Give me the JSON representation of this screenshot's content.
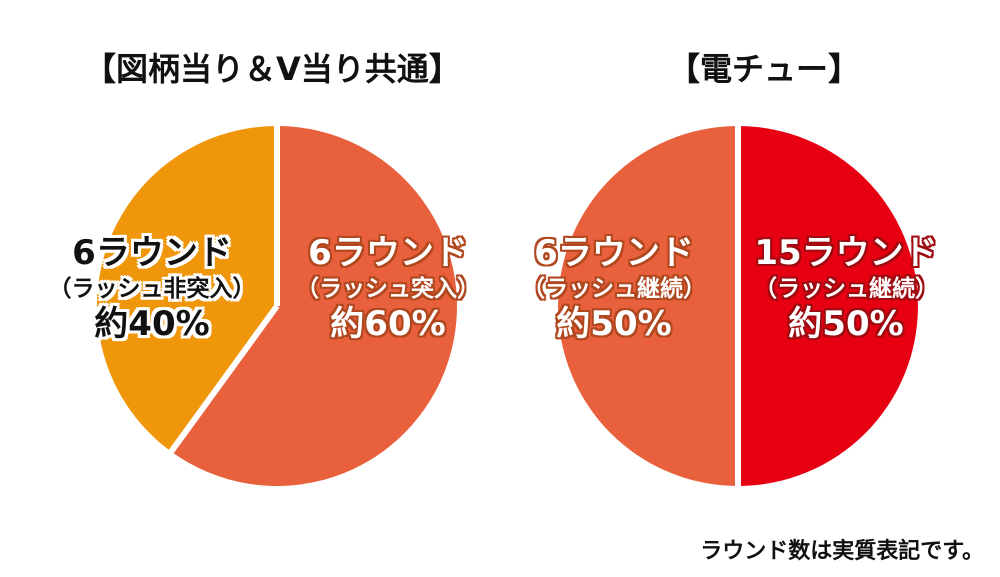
{
  "colors": {
    "orange": "#F0960A",
    "coral": "#E8613C",
    "red": "#E60012",
    "separator": "#ffffff"
  },
  "footnote": "ラウンド数は実質表記です。",
  "chart_data": [
    {
      "type": "pie",
      "title": "【図柄当り＆V当り共通】",
      "slices": [
        {
          "round": "6ラウンド",
          "sub": "（ラッシュ非突入）",
          "pct_label": "約40%",
          "value": 40,
          "color": "#F0960A",
          "text_style": "dark"
        },
        {
          "round": "6ラウンド",
          "sub": "（ラッシュ突入）",
          "pct_label": "約60%",
          "value": 60,
          "color": "#E8613C",
          "text_style": "light"
        }
      ]
    },
    {
      "type": "pie",
      "title": "【電チュー】",
      "slices": [
        {
          "round": "6ラウンド",
          "sub": "（ラッシュ継続）",
          "pct_label": "約50%",
          "value": 50,
          "color": "#E8613C",
          "text_style": "light"
        },
        {
          "round": "15ラウンド",
          "sub": "（ラッシュ継続）",
          "pct_label": "約50%",
          "value": 50,
          "color": "#E60012",
          "text_style": "light-red"
        }
      ]
    }
  ]
}
